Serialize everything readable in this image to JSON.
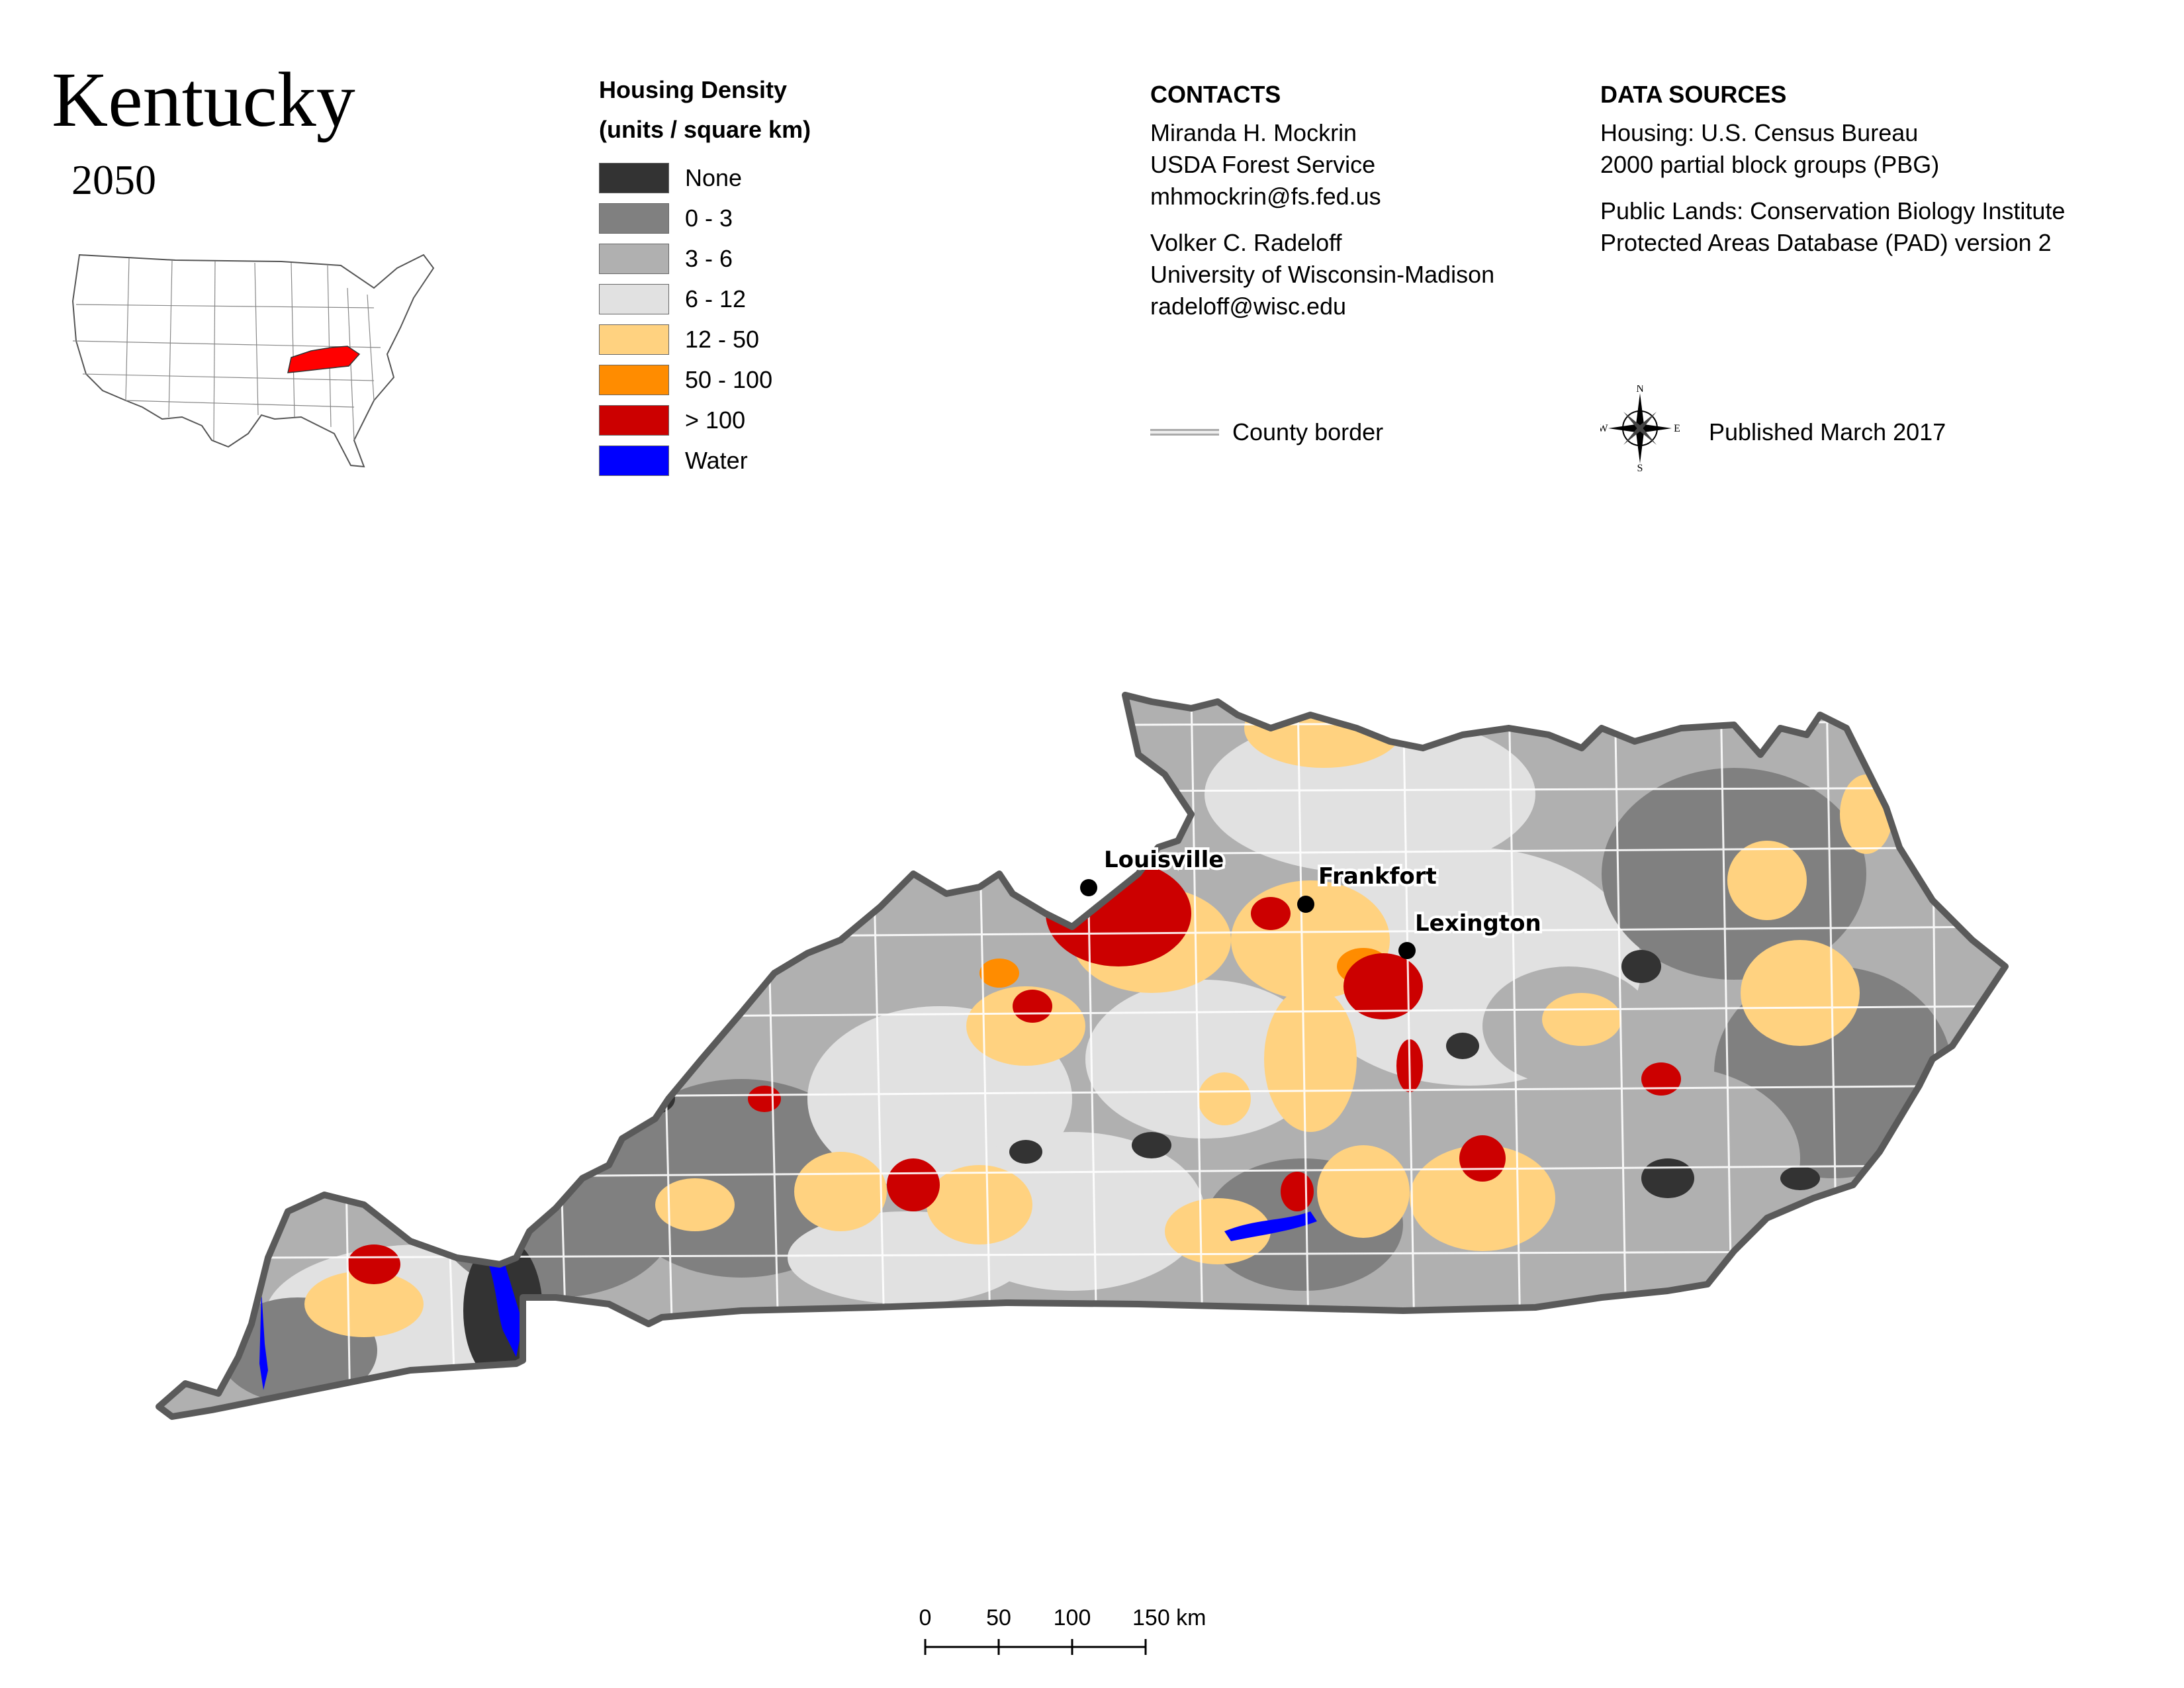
{
  "title": "Kentucky",
  "year": "2050",
  "legend": {
    "title_line1": "Housing Density",
    "title_line2": "(units / square km)",
    "classes": [
      {
        "label": "None",
        "color": "#333333"
      },
      {
        "label": "0 - 3",
        "color": "#808080"
      },
      {
        "label": "3 - 6",
        "color": "#b0b0b0"
      },
      {
        "label": "6 - 12",
        "color": "#e1e1e1"
      },
      {
        "label": "12 - 50",
        "color": "#ffd280"
      },
      {
        "label": "50 - 100",
        "color": "#ff8c00"
      },
      {
        "label": "> 100",
        "color": "#cc0000"
      },
      {
        "label": "Water",
        "color": "#0000ff"
      }
    ]
  },
  "contacts": {
    "heading": "CONTACTS",
    "person1": {
      "name": "Miranda H. Mockrin",
      "org": "USDA Forest Service",
      "email": "mhmockrin@fs.fed.us"
    },
    "person2": {
      "name": "Volker C. Radeloff",
      "org": "University of Wisconsin-Madison",
      "email": "radeloff@wisc.edu"
    }
  },
  "sources": {
    "heading": "DATA SOURCES",
    "housing_line1": "Housing: U.S. Census Bureau",
    "housing_line2": "2000 partial block groups (PBG)",
    "lands_line1": "Public Lands: Conservation Biology Institute",
    "lands_line2": "Protected Areas Database (PAD) version 2"
  },
  "county_border_label": "County border",
  "compass": {
    "n": "N",
    "s": "S",
    "e": "E",
    "w": "W"
  },
  "published": "Published March 2017",
  "cities": [
    {
      "name": "Louisville"
    },
    {
      "name": "Frankfort"
    },
    {
      "name": "Lexington"
    }
  ],
  "scalebar": {
    "labels": [
      "0",
      "50",
      "100"
    ],
    "last_label": "150 km"
  },
  "colors": {
    "state_outline": "#5a5a5a",
    "county_lines": "#ffffff",
    "inset_highlight": "#ff0000"
  }
}
